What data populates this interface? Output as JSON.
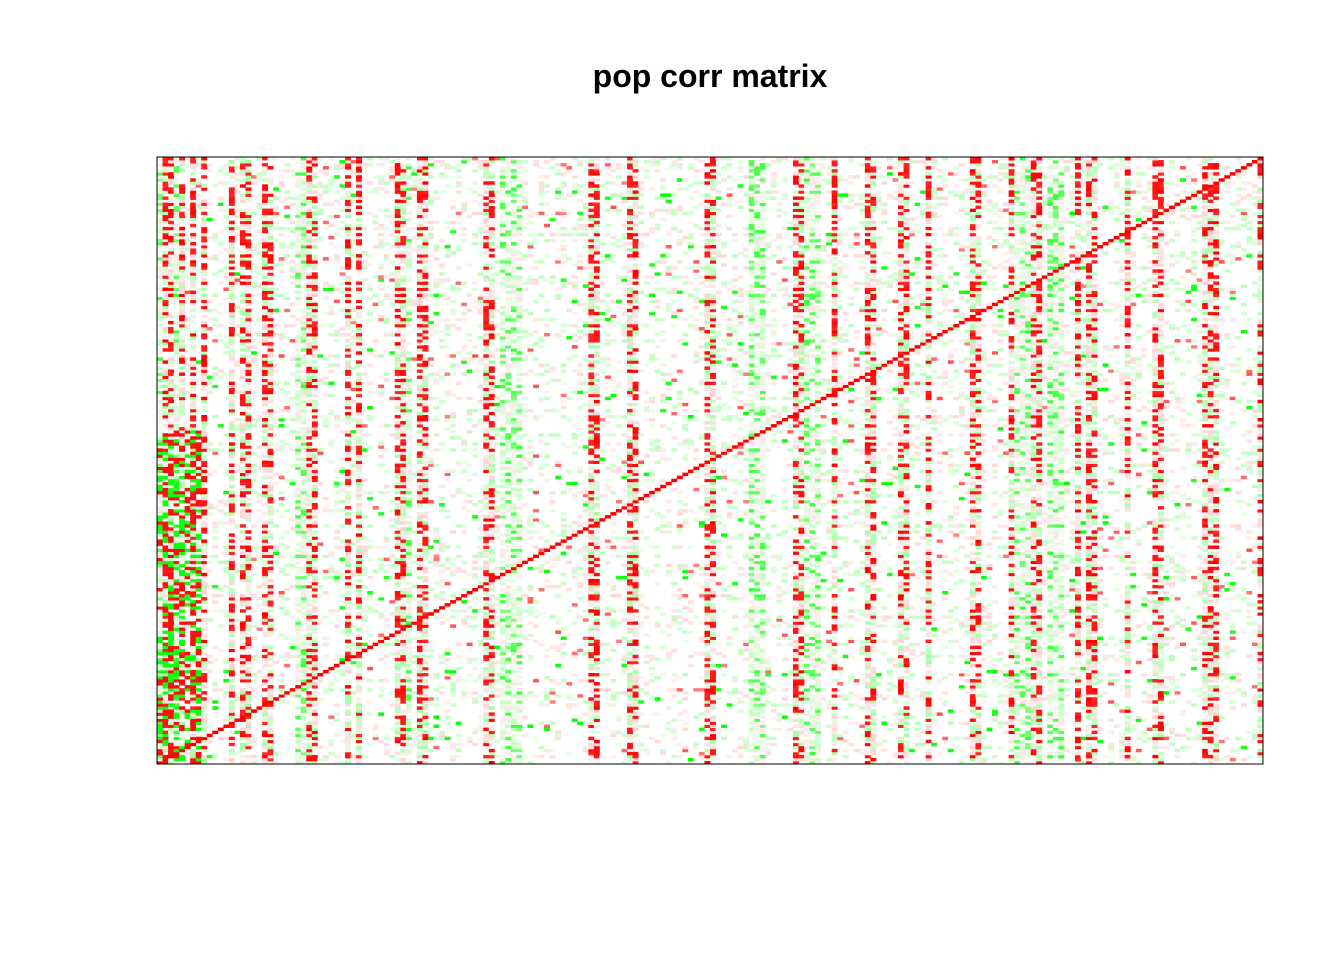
{
  "chart_data": {
    "type": "heatmap",
    "title": "pop corr matrix",
    "xlabel": "",
    "ylabel": "",
    "matrix_size": 200,
    "value_range": [
      -1,
      1
    ],
    "diagonal_value": 1,
    "axes_shown": false,
    "grid": false,
    "legend": "none",
    "colors": {
      "positive": "#ff0000",
      "zero": "#ffffff",
      "negative": "#00ff00",
      "frame": "#000000"
    },
    "strong_positive_columns": [
      1,
      2,
      4,
      6,
      8,
      13,
      15,
      16,
      19,
      20,
      27,
      28,
      34,
      36,
      43,
      44,
      47,
      48,
      59,
      60,
      78,
      79,
      85,
      86,
      99,
      100,
      115,
      116,
      122,
      128,
      129,
      134,
      135,
      139,
      147,
      148,
      154,
      158,
      159,
      166,
      168,
      169,
      175,
      180,
      181,
      189,
      190,
      191,
      199
    ],
    "strong_negative_columns": [
      0,
      1,
      2,
      3,
      25,
      26,
      27,
      43,
      44,
      45,
      62,
      63,
      64,
      65,
      107,
      108,
      109,
      117,
      118,
      119,
      155,
      156,
      157,
      161,
      162,
      163
    ],
    "strong_rows": [
      2,
      8,
      21,
      22,
      23,
      24,
      27,
      29,
      34,
      35,
      39,
      45,
      46,
      48,
      50,
      54,
      55,
      62,
      63,
      64,
      66,
      68,
      71,
      74,
      76,
      78,
      83,
      86,
      89,
      93,
      96,
      98,
      103,
      105,
      108,
      111,
      113,
      114,
      116,
      120,
      122,
      125,
      128,
      129,
      131,
      133,
      139,
      141,
      144,
      146,
      149,
      152,
      154,
      156,
      158,
      160,
      163,
      165,
      167,
      170,
      171,
      172,
      174,
      176,
      178,
      180,
      181,
      182,
      184,
      186,
      187,
      188,
      190,
      191,
      193,
      195,
      196,
      197,
      199
    ]
  }
}
